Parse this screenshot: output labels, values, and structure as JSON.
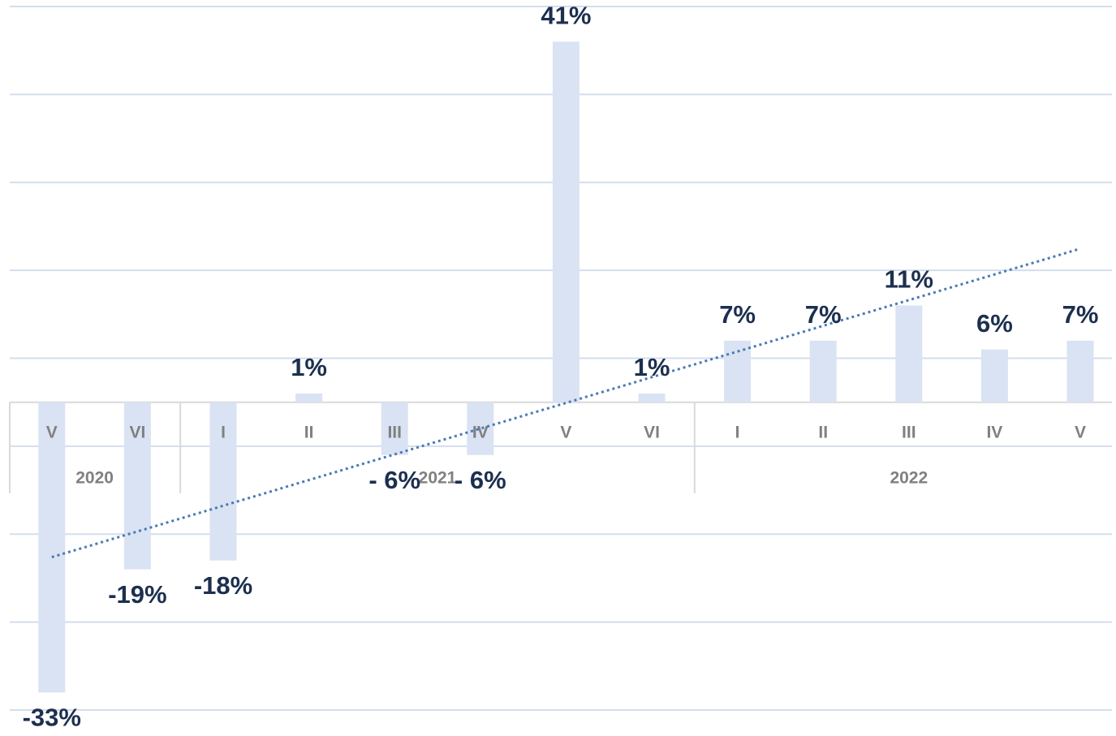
{
  "chart_data": {
    "type": "bar",
    "groups": [
      {
        "name": "2020",
        "categories": [
          "V",
          "VI"
        ]
      },
      {
        "name": "2021",
        "categories": [
          "I",
          "II",
          "III",
          "IV",
          "V",
          "VI"
        ]
      },
      {
        "name": "2022",
        "categories": [
          "I",
          "II",
          "III",
          "IV",
          "V"
        ]
      }
    ],
    "values": [
      -33,
      -19,
      -18,
      1,
      -6,
      -6,
      41,
      1,
      7,
      7,
      11,
      6,
      7
    ],
    "value_labels": [
      "-33%",
      "-19%",
      "-18%",
      "1%",
      "- 6%",
      "- 6%",
      "41%",
      "1%",
      "7%",
      "7%",
      "11%",
      "6%",
      "7%"
    ],
    "color": "#dae3f3",
    "trendline": {
      "type": "linear",
      "color": "#4a7ab5",
      "style": "dotted"
    },
    "ylim": [
      -35,
      45
    ],
    "yticks": [
      -35,
      -25,
      -15,
      -5,
      5,
      15,
      25,
      35,
      45
    ],
    "grid": true
  }
}
